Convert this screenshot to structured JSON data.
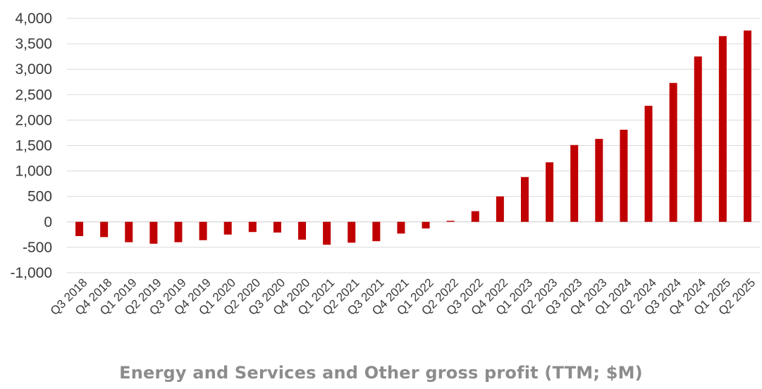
{
  "chart_data": {
    "type": "bar",
    "title": "",
    "caption": "Energy and Services and Other gross profit (TTM; $M)",
    "xlabel": "",
    "ylabel": "",
    "ylim": [
      -1000,
      4000
    ],
    "yticks": [
      4000,
      3500,
      3000,
      2500,
      2000,
      1500,
      1000,
      500,
      0,
      -500,
      -1000
    ],
    "ytick_labels": [
      "4,000",
      "3,500",
      "3,000",
      "2,500",
      "2,000",
      "1,500",
      "1,000",
      "500",
      "0",
      "-500",
      "-1,000"
    ],
    "grid": true,
    "legend": "none",
    "bar_color": "#c00000",
    "categories": [
      "Q3 2018",
      "Q4 2018",
      "Q1 2019",
      "Q2 2019",
      "Q3 2019",
      "Q4 2019",
      "Q1 2020",
      "Q2 2020",
      "Q3 2020",
      "Q4 2020",
      "Q1 2021",
      "Q2 2021",
      "Q3 2021",
      "Q4 2021",
      "Q1 2022",
      "Q2 2022",
      "Q3 2022",
      "Q4 2022",
      "Q1 2023",
      "Q2 2023",
      "Q3 2023",
      "Q4 2023",
      "Q1 2024",
      "Q2 2024",
      "Q3 2024",
      "Q4 2024",
      "Q1 2025",
      "Q2 2025"
    ],
    "values": [
      -280,
      -300,
      -400,
      -430,
      -400,
      -360,
      -250,
      -200,
      -210,
      -350,
      -450,
      -410,
      -380,
      -230,
      -130,
      20,
      210,
      500,
      880,
      1170,
      1510,
      1630,
      1810,
      2280,
      2730,
      3250,
      3650,
      3760
    ]
  }
}
